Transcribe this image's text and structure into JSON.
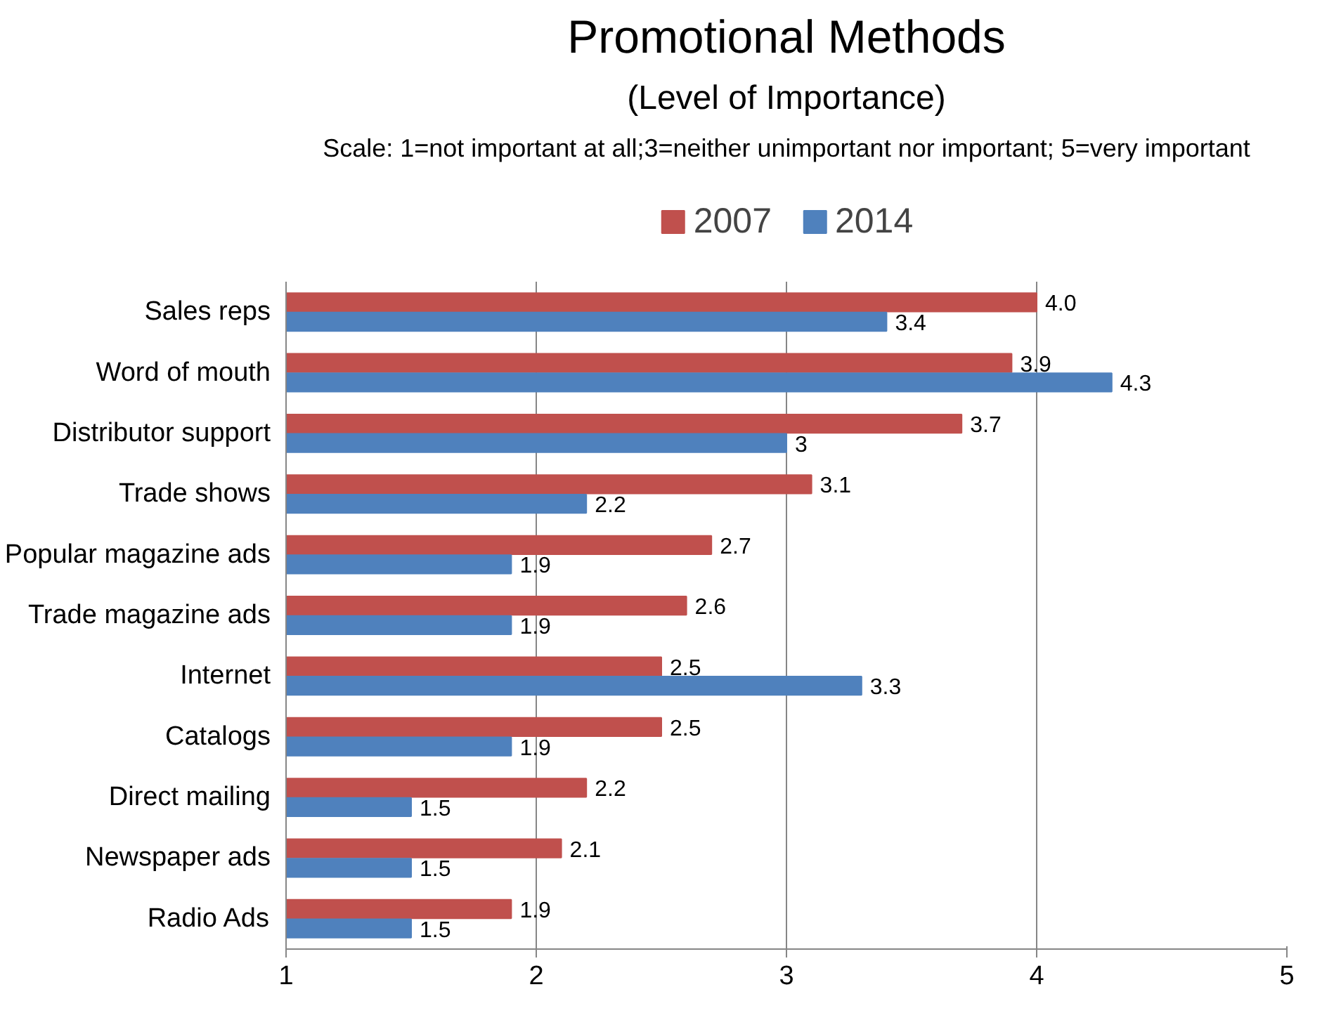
{
  "chart_data": {
    "type": "bar",
    "orientation": "horizontal",
    "title": "Promotional Methods",
    "subtitle": "(Level of Importance)",
    "annotations": [
      "Scale: 1=not important at all;3=neither unimportant nor important; 5=very important"
    ],
    "categories": [
      "Sales reps",
      "Word of mouth",
      "Distributor support",
      "Trade shows",
      "Popular magazine ads",
      "Trade magazine ads",
      "Internet",
      "Catalogs",
      "Direct mailing",
      "Newspaper ads",
      "Radio Ads"
    ],
    "series": [
      {
        "name": "2007",
        "color": "#c0504d",
        "values": [
          4.0,
          3.9,
          3.7,
          3.1,
          2.7,
          2.6,
          2.5,
          2.5,
          2.2,
          2.1,
          1.9
        ],
        "value_labels": [
          "4.0",
          "3.9",
          "3.7",
          "3.1",
          "2.7",
          "2.6",
          "2.5",
          "2.5",
          "2.2",
          "2.1",
          "1.9"
        ]
      },
      {
        "name": "2014",
        "color": "#4f81bd",
        "values": [
          3.4,
          4.3,
          3.0,
          2.2,
          1.9,
          1.9,
          3.3,
          1.9,
          1.5,
          1.5,
          1.5
        ],
        "value_labels": [
          "3.4",
          "4.3",
          "3",
          "2.2",
          "1.9",
          "1.9",
          "3.3",
          "1.9",
          "1.5",
          "1.5",
          "1.5"
        ]
      }
    ],
    "xlim": [
      1,
      5
    ],
    "xticks": [
      1,
      2,
      3,
      4,
      5
    ],
    "grid": "x",
    "legend": "top"
  }
}
